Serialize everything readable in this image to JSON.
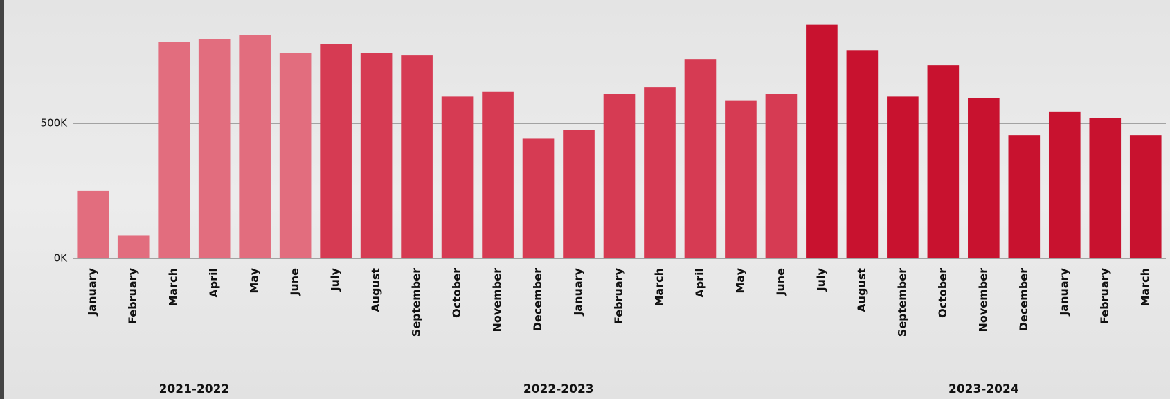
{
  "chart_data": {
    "type": "bar",
    "series": [
      {
        "name": "2021-2022",
        "color": "#e26d7e",
        "categories": [
          "January",
          "February",
          "March",
          "April",
          "May",
          "June"
        ],
        "values": [
          249000,
          86000,
          801000,
          812000,
          826000,
          760000
        ]
      },
      {
        "name": "2022-2023",
        "color": "#d63b53",
        "categories": [
          "July",
          "August",
          "September",
          "October",
          "November",
          "December",
          "January",
          "February",
          "March",
          "April",
          "May",
          "June"
        ],
        "values": [
          793000,
          760000,
          751000,
          599000,
          616000,
          445000,
          475000,
          610000,
          633000,
          738000,
          583000,
          610000
        ]
      },
      {
        "name": "2023-2024",
        "color": "#c8122f",
        "categories": [
          "July",
          "August",
          "September",
          "October",
          "November",
          "December",
          "January",
          "February",
          "March"
        ],
        "values": [
          865000,
          771000,
          599000,
          715000,
          594000,
          456000,
          544000,
          519000,
          456000
        ]
      }
    ],
    "ylim": [
      0,
      950000
    ],
    "yticks": [
      {
        "value": 0,
        "label": "0K"
      },
      {
        "value": 500000,
        "label": "500K"
      }
    ],
    "grid": true
  }
}
